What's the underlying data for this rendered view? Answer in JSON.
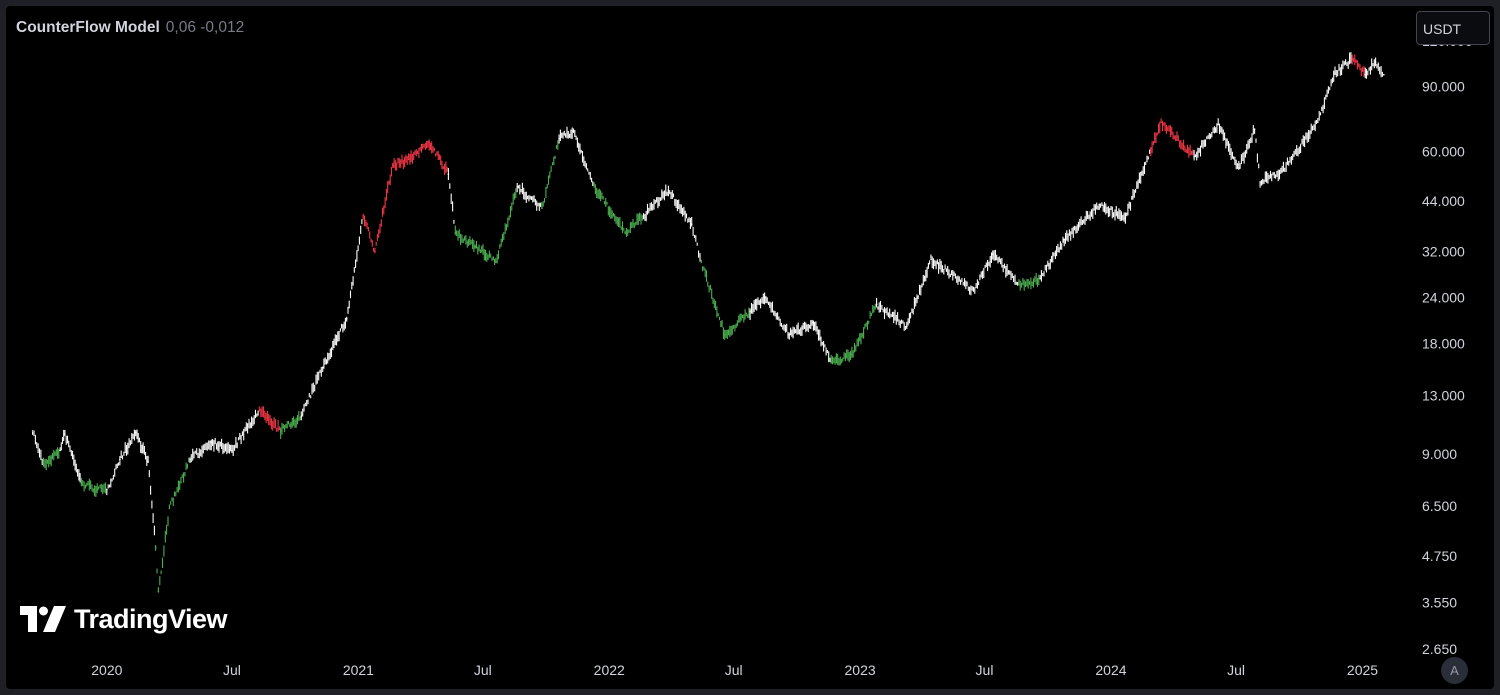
{
  "legend": {
    "name": "CounterFlow Model",
    "values": "0,06 -0,012"
  },
  "currency": "USDT",
  "auto_button": "A",
  "logo": {
    "text": "TradingView"
  },
  "colors": {
    "background": "#000000",
    "price": "#ffffff",
    "buy": "#4caf50",
    "sell": "#f23645",
    "axis_text": "#d1d4dc"
  },
  "chart_data": {
    "type": "line",
    "title": "",
    "x_scale": "time",
    "y_scale": "log",
    "xlabel": "",
    "ylabel": "",
    "ylim": [
      2650,
      135000
    ],
    "xlim": [
      "2019-09-01",
      "2025-02-10"
    ],
    "x_tick_labels": [
      {
        "date": "2020-01-01",
        "label": "2020"
      },
      {
        "date": "2020-07-01",
        "label": "Jul"
      },
      {
        "date": "2021-01-01",
        "label": "2021"
      },
      {
        "date": "2021-07-01",
        "label": "Jul"
      },
      {
        "date": "2022-01-01",
        "label": "2022"
      },
      {
        "date": "2022-07-01",
        "label": "Jul"
      },
      {
        "date": "2023-01-01",
        "label": "2023"
      },
      {
        "date": "2023-07-01",
        "label": "Jul"
      },
      {
        "date": "2024-01-01",
        "label": "2024"
      },
      {
        "date": "2024-07-01",
        "label": "Jul"
      },
      {
        "date": "2025-01-01",
        "label": "2025"
      }
    ],
    "y_tick_labels": [
      {
        "value": 120000,
        "label": "120.000"
      },
      {
        "value": 90000,
        "label": "90.000"
      },
      {
        "value": 60000,
        "label": "60.000"
      },
      {
        "value": 44000,
        "label": "44.000"
      },
      {
        "value": 32000,
        "label": "32.000"
      },
      {
        "value": 24000,
        "label": "24.000"
      },
      {
        "value": 18000,
        "label": "18.000"
      },
      {
        "value": 13000,
        "label": "13.000"
      },
      {
        "value": 9000,
        "label": "9.000"
      },
      {
        "value": 6500,
        "label": "6.500"
      },
      {
        "value": 4750,
        "label": "4.750"
      },
      {
        "value": 3550,
        "label": "3.550"
      },
      {
        "value": 2650,
        "label": "2.650"
      }
    ],
    "series": [
      {
        "style": "candles",
        "points": [
          {
            "date": "2019-09-15",
            "value": 10400,
            "signal": "neutral"
          },
          {
            "date": "2019-10-01",
            "value": 8400,
            "signal": "buy"
          },
          {
            "date": "2019-10-25",
            "value": 9200,
            "signal": "neutral"
          },
          {
            "date": "2019-11-01",
            "value": 10200,
            "signal": "neutral"
          },
          {
            "date": "2019-11-25",
            "value": 7500,
            "signal": "buy"
          },
          {
            "date": "2019-12-18",
            "value": 7200,
            "signal": "buy"
          },
          {
            "date": "2020-01-01",
            "value": 7200,
            "signal": "neutral"
          },
          {
            "date": "2020-01-20",
            "value": 8700,
            "signal": "neutral"
          },
          {
            "date": "2020-02-12",
            "value": 10300,
            "signal": "neutral"
          },
          {
            "date": "2020-03-01",
            "value": 8600,
            "signal": "neutral"
          },
          {
            "date": "2020-03-12",
            "value": 5000,
            "signal": "buy"
          },
          {
            "date": "2020-03-16",
            "value": 3800,
            "signal": "buy"
          },
          {
            "date": "2020-04-01",
            "value": 6400,
            "signal": "buy"
          },
          {
            "date": "2020-05-01",
            "value": 8700,
            "signal": "neutral"
          },
          {
            "date": "2020-06-01",
            "value": 9700,
            "signal": "neutral"
          },
          {
            "date": "2020-07-01",
            "value": 9200,
            "signal": "neutral"
          },
          {
            "date": "2020-08-10",
            "value": 11800,
            "signal": "sell"
          },
          {
            "date": "2020-09-10",
            "value": 10400,
            "signal": "buy"
          },
          {
            "date": "2020-10-10",
            "value": 11400,
            "signal": "neutral"
          },
          {
            "date": "2020-11-10",
            "value": 15500,
            "signal": "neutral"
          },
          {
            "date": "2020-12-15",
            "value": 21000,
            "signal": "neutral"
          },
          {
            "date": "2021-01-08",
            "value": 40000,
            "signal": "sell"
          },
          {
            "date": "2021-01-25",
            "value": 32000,
            "signal": "sell"
          },
          {
            "date": "2021-02-20",
            "value": 55000,
            "signal": "sell"
          },
          {
            "date": "2021-03-15",
            "value": 57000,
            "signal": "sell"
          },
          {
            "date": "2021-04-14",
            "value": 63500,
            "signal": "sell"
          },
          {
            "date": "2021-05-12",
            "value": 52000,
            "signal": "neutral"
          },
          {
            "date": "2021-05-22",
            "value": 36000,
            "signal": "buy"
          },
          {
            "date": "2021-06-20",
            "value": 33000,
            "signal": "buy"
          },
          {
            "date": "2021-07-20",
            "value": 30000,
            "signal": "buy"
          },
          {
            "date": "2021-08-20",
            "value": 48000,
            "signal": "neutral"
          },
          {
            "date": "2021-09-25",
            "value": 42000,
            "signal": "buy"
          },
          {
            "date": "2021-10-20",
            "value": 65000,
            "signal": "neutral"
          },
          {
            "date": "2021-11-10",
            "value": 68000,
            "signal": "neutral"
          },
          {
            "date": "2021-12-10",
            "value": 48000,
            "signal": "buy"
          },
          {
            "date": "2022-01-24",
            "value": 36000,
            "signal": "buy"
          },
          {
            "date": "2022-02-20",
            "value": 40000,
            "signal": "neutral"
          },
          {
            "date": "2022-03-28",
            "value": 47000,
            "signal": "neutral"
          },
          {
            "date": "2022-05-01",
            "value": 38000,
            "signal": "neutral"
          },
          {
            "date": "2022-05-15",
            "value": 30000,
            "signal": "buy"
          },
          {
            "date": "2022-06-18",
            "value": 19000,
            "signal": "buy"
          },
          {
            "date": "2022-07-25",
            "value": 22000,
            "signal": "neutral"
          },
          {
            "date": "2022-08-15",
            "value": 24000,
            "signal": "neutral"
          },
          {
            "date": "2022-09-20",
            "value": 19000,
            "signal": "neutral"
          },
          {
            "date": "2022-10-25",
            "value": 20500,
            "signal": "neutral"
          },
          {
            "date": "2022-11-20",
            "value": 16000,
            "signal": "buy"
          },
          {
            "date": "2022-12-20",
            "value": 16800,
            "signal": "buy"
          },
          {
            "date": "2023-01-25",
            "value": 23000,
            "signal": "neutral"
          },
          {
            "date": "2023-03-10",
            "value": 20000,
            "signal": "neutral"
          },
          {
            "date": "2023-04-14",
            "value": 30500,
            "signal": "neutral"
          },
          {
            "date": "2023-06-15",
            "value": 25000,
            "signal": "neutral"
          },
          {
            "date": "2023-07-13",
            "value": 31500,
            "signal": "neutral"
          },
          {
            "date": "2023-08-20",
            "value": 26000,
            "signal": "buy"
          },
          {
            "date": "2023-09-20",
            "value": 27000,
            "signal": "neutral"
          },
          {
            "date": "2023-10-25",
            "value": 34500,
            "signal": "neutral"
          },
          {
            "date": "2023-12-15",
            "value": 43000,
            "signal": "neutral"
          },
          {
            "date": "2024-01-22",
            "value": 39500,
            "signal": "neutral"
          },
          {
            "date": "2024-02-28",
            "value": 61000,
            "signal": "sell"
          },
          {
            "date": "2024-03-14",
            "value": 72000,
            "signal": "sell"
          },
          {
            "date": "2024-05-01",
            "value": 58000,
            "signal": "neutral"
          },
          {
            "date": "2024-06-05",
            "value": 71000,
            "signal": "neutral"
          },
          {
            "date": "2024-07-05",
            "value": 54000,
            "signal": "neutral"
          },
          {
            "date": "2024-07-28",
            "value": 69000,
            "signal": "neutral"
          },
          {
            "date": "2024-08-05",
            "value": 49500,
            "signal": "neutral"
          },
          {
            "date": "2024-09-06",
            "value": 53000,
            "signal": "neutral"
          },
          {
            "date": "2024-10-28",
            "value": 72000,
            "signal": "neutral"
          },
          {
            "date": "2024-11-22",
            "value": 98000,
            "signal": "neutral"
          },
          {
            "date": "2024-12-17",
            "value": 107000,
            "signal": "sell"
          },
          {
            "date": "2025-01-05",
            "value": 97000,
            "signal": "neutral"
          },
          {
            "date": "2025-01-20",
            "value": 105000,
            "signal": "neutral"
          },
          {
            "date": "2025-02-01",
            "value": 97000,
            "signal": "neutral"
          }
        ]
      }
    ]
  }
}
